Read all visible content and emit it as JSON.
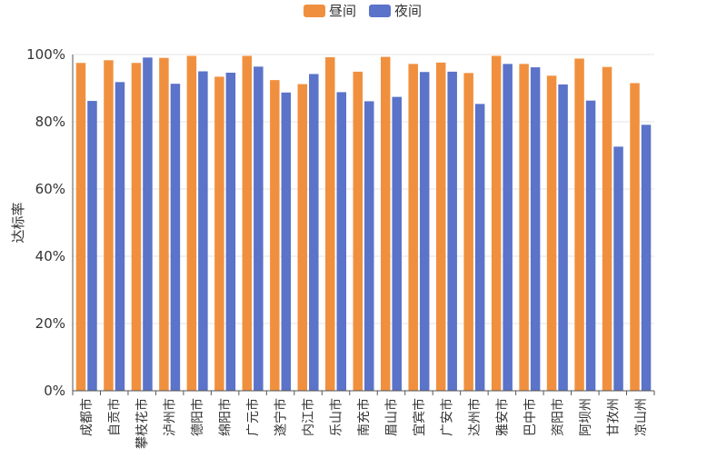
{
  "chart_data": {
    "type": "bar",
    "categories": [
      "成都市",
      "自贡市",
      "攀枝花市",
      "泸州市",
      "德阳市",
      "绵阳市",
      "广元市",
      "遂宁市",
      "内江市",
      "乐山市",
      "南充市",
      "眉山市",
      "宜宾市",
      "广安市",
      "达州市",
      "雅安市",
      "巴中市",
      "资阳市",
      "阿坝州",
      "甘孜州",
      "凉山州"
    ],
    "series": [
      {
        "name": "昼间",
        "color": "#F0903F",
        "values": [
          97.5,
          98.3,
          97.5,
          99.0,
          99.6,
          93.4,
          99.6,
          92.4,
          91.2,
          99.2,
          94.9,
          99.3,
          97.2,
          97.6,
          94.5,
          99.6,
          97.2,
          93.7,
          98.8,
          96.3,
          91.5
        ]
      },
      {
        "name": "夜间",
        "color": "#5B73C8",
        "values": [
          86.2,
          91.8,
          99.1,
          91.3,
          95.0,
          94.6,
          96.4,
          88.7,
          94.2,
          88.8,
          86.1,
          87.4,
          94.8,
          94.9,
          85.3,
          97.2,
          96.2,
          91.1,
          86.3,
          72.6,
          79.1
        ]
      }
    ],
    "ylabel": "达标率",
    "ylim": [
      0,
      100
    ],
    "yticks": [
      "0%",
      "20%",
      "40%",
      "60%",
      "80%",
      "100%"
    ],
    "grid": true,
    "legend_position": "top-center"
  }
}
